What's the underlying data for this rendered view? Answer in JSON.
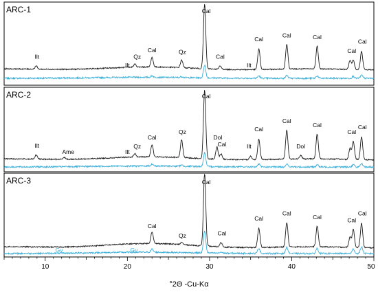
{
  "chart_data": {
    "type": "line",
    "xlabel": "°2Θ -Cu-Kα",
    "ylabel": "",
    "xlim": [
      5,
      50
    ],
    "x_ticks": [
      "10",
      "20",
      "30",
      "40",
      "50"
    ],
    "grid": false,
    "panels": [
      {
        "label": "ARC-1",
        "black_peaks": [
          {
            "x": 8.9,
            "h": 0.05
          },
          {
            "x": 20.9,
            "h": 0.05
          },
          {
            "x": 23.0,
            "h": 0.15
          },
          {
            "x": 26.6,
            "h": 0.12
          },
          {
            "x": 29.4,
            "h": 1.0
          },
          {
            "x": 31.3,
            "h": 0.05
          },
          {
            "x": 36.0,
            "h": 0.32
          },
          {
            "x": 39.4,
            "h": 0.38
          },
          {
            "x": 43.1,
            "h": 0.35
          },
          {
            "x": 47.1,
            "h": 0.14
          },
          {
            "x": 47.5,
            "h": 0.14
          },
          {
            "x": 48.5,
            "h": 0.28
          }
        ],
        "blue_peaks": [
          {
            "x": 23.0,
            "h": 0.08
          },
          {
            "x": 26.6,
            "h": 0.05
          },
          {
            "x": 29.4,
            "h": 0.62
          },
          {
            "x": 36.0,
            "h": 0.12
          },
          {
            "x": 39.4,
            "h": 0.14
          },
          {
            "x": 43.1,
            "h": 0.12
          },
          {
            "x": 47.5,
            "h": 0.1
          },
          {
            "x": 48.5,
            "h": 0.15
          }
        ],
        "annotations": [
          {
            "text": "Ilt",
            "x": 9.0
          },
          {
            "text": "Ilt",
            "x": 20.0
          },
          {
            "text": "Qz",
            "x": 21.2
          },
          {
            "text": "Cal",
            "x": 23.0
          },
          {
            "text": "Qz",
            "x": 26.7
          },
          {
            "text": "Cal",
            "x": 29.6
          },
          {
            "text": "Cal",
            "x": 31.3
          },
          {
            "text": "Ilt",
            "x": 34.8
          },
          {
            "text": "Cal",
            "x": 36.0
          },
          {
            "text": "Cal",
            "x": 39.4
          },
          {
            "text": "Cal",
            "x": 43.1
          },
          {
            "text": "Cal",
            "x": 47.3
          },
          {
            "text": "Cal",
            "x": 48.6
          }
        ]
      },
      {
        "label": "ARC-2",
        "black_peaks": [
          {
            "x": 8.9,
            "h": 0.06
          },
          {
            "x": 12.3,
            "h": 0.03
          },
          {
            "x": 20.9,
            "h": 0.05
          },
          {
            "x": 23.0,
            "h": 0.18
          },
          {
            "x": 26.6,
            "h": 0.26
          },
          {
            "x": 29.4,
            "h": 1.0
          },
          {
            "x": 30.9,
            "h": 0.18
          },
          {
            "x": 31.4,
            "h": 0.08
          },
          {
            "x": 35.0,
            "h": 0.05
          },
          {
            "x": 36.0,
            "h": 0.3
          },
          {
            "x": 39.4,
            "h": 0.42
          },
          {
            "x": 41.1,
            "h": 0.05
          },
          {
            "x": 43.1,
            "h": 0.36
          },
          {
            "x": 47.1,
            "h": 0.16
          },
          {
            "x": 47.5,
            "h": 0.26
          },
          {
            "x": 48.5,
            "h": 0.33
          }
        ],
        "blue_peaks": [
          {
            "x": 23.0,
            "h": 0.1
          },
          {
            "x": 26.6,
            "h": 0.06
          },
          {
            "x": 29.4,
            "h": 0.7
          },
          {
            "x": 36.0,
            "h": 0.14
          },
          {
            "x": 39.4,
            "h": 0.15
          },
          {
            "x": 43.1,
            "h": 0.12
          },
          {
            "x": 47.5,
            "h": 0.12
          },
          {
            "x": 48.5,
            "h": 0.16
          }
        ],
        "annotations": [
          {
            "text": "Ilt",
            "x": 9.0
          },
          {
            "text": "Ame",
            "x": 12.8
          },
          {
            "text": "Ilt",
            "x": 20.0
          },
          {
            "text": "Qz",
            "x": 21.2
          },
          {
            "text": "Cal",
            "x": 23.0
          },
          {
            "text": "Qz",
            "x": 26.7
          },
          {
            "text": "Cal",
            "x": 29.6
          },
          {
            "text": "Dol",
            "x": 31.0
          },
          {
            "text": "Cal",
            "x": 31.5
          },
          {
            "text": "Ilt",
            "x": 34.8
          },
          {
            "text": "Cal",
            "x": 36.0
          },
          {
            "text": "Cal",
            "x": 39.4
          },
          {
            "text": "Dol",
            "x": 41.1
          },
          {
            "text": "Cal",
            "x": 43.1
          },
          {
            "text": "Cal",
            "x": 47.3
          },
          {
            "text": "Cal",
            "x": 48.6
          }
        ]
      },
      {
        "label": "ARC-3",
        "black_peaks": [
          {
            "x": 23.0,
            "h": 0.16
          },
          {
            "x": 26.6,
            "h": 0.03
          },
          {
            "x": 29.4,
            "h": 1.0
          },
          {
            "x": 31.4,
            "h": 0.06
          },
          {
            "x": 36.0,
            "h": 0.26
          },
          {
            "x": 39.4,
            "h": 0.33
          },
          {
            "x": 43.1,
            "h": 0.28
          },
          {
            "x": 47.1,
            "h": 0.14
          },
          {
            "x": 47.5,
            "h": 0.24
          },
          {
            "x": 48.5,
            "h": 0.33
          }
        ],
        "blue_peaks": [
          {
            "x": 23.0,
            "h": 0.12
          },
          {
            "x": 29.4,
            "h": 0.84
          },
          {
            "x": 31.4,
            "h": 0.04
          },
          {
            "x": 36.0,
            "h": 0.2
          },
          {
            "x": 39.4,
            "h": 0.24
          },
          {
            "x": 43.1,
            "h": 0.2
          },
          {
            "x": 47.5,
            "h": 0.18
          },
          {
            "x": 48.5,
            "h": 0.26
          }
        ],
        "annotations": [
          {
            "text": "Cal",
            "x": 23.0
          },
          {
            "text": "Qz",
            "x": 26.7
          },
          {
            "text": "Cal",
            "x": 29.6
          },
          {
            "text": "Cal",
            "x": 31.5
          },
          {
            "text": "Cal",
            "x": 36.0
          },
          {
            "text": "Cal",
            "x": 39.4
          },
          {
            "text": "Cal",
            "x": 43.1
          },
          {
            "text": "Cal",
            "x": 47.3
          },
          {
            "text": "Cal",
            "x": 48.6
          }
        ],
        "blue_annotations": [
          {
            "text": "Gy",
            "x": 11.7
          },
          {
            "text": "Gy",
            "x": 20.8
          }
        ]
      }
    ],
    "colors": {
      "black_series": "#1a1a1a",
      "blue_series": "#3aaed8",
      "frame": "#000000"
    }
  }
}
